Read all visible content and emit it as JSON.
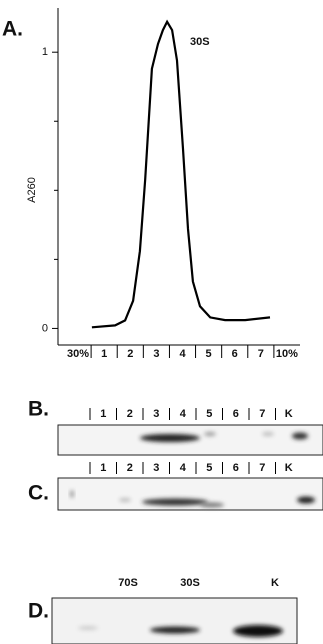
{
  "panels": [
    "A.",
    "B.",
    "C.",
    "D."
  ],
  "chart_data": {
    "type": "line",
    "y_label": "A260",
    "annotation": "30S",
    "color": "#000000",
    "categories": [
      "30%",
      "1",
      "2",
      "3",
      "4",
      "5",
      "6",
      "7",
      "10%"
    ],
    "xlim": [
      0,
      9
    ],
    "x": [
      1.03,
      1.92,
      2.3,
      2.61,
      2.87,
      3.07,
      3.33,
      3.56,
      3.75,
      3.91,
      4.1,
      4.29,
      4.52,
      4.71,
      4.9,
      5.17,
      5.56,
      6.13,
      6.9,
      7.85
    ],
    "values": [
      0.004,
      0.011,
      0.029,
      0.1,
      0.28,
      0.54,
      0.94,
      1.03,
      1.08,
      1.11,
      1.08,
      0.97,
      0.65,
      0.36,
      0.17,
      0.08,
      0.04,
      0.03,
      0.03,
      0.04
    ],
    "ylim": [
      -0.06,
      1.16
    ],
    "yticks": [
      0,
      1
    ],
    "yminor": [
      0.25,
      0.5,
      0.75
    ]
  },
  "blots": [
    {
      "lanes": [
        "1",
        "2",
        "3",
        "4",
        "5",
        "6",
        "7",
        "K"
      ]
    },
    {
      "lanes": [
        "1",
        "2",
        "3",
        "4",
        "5",
        "6",
        "7",
        "K"
      ]
    },
    {
      "lanes": [
        "70S",
        "30S",
        "K"
      ]
    }
  ]
}
